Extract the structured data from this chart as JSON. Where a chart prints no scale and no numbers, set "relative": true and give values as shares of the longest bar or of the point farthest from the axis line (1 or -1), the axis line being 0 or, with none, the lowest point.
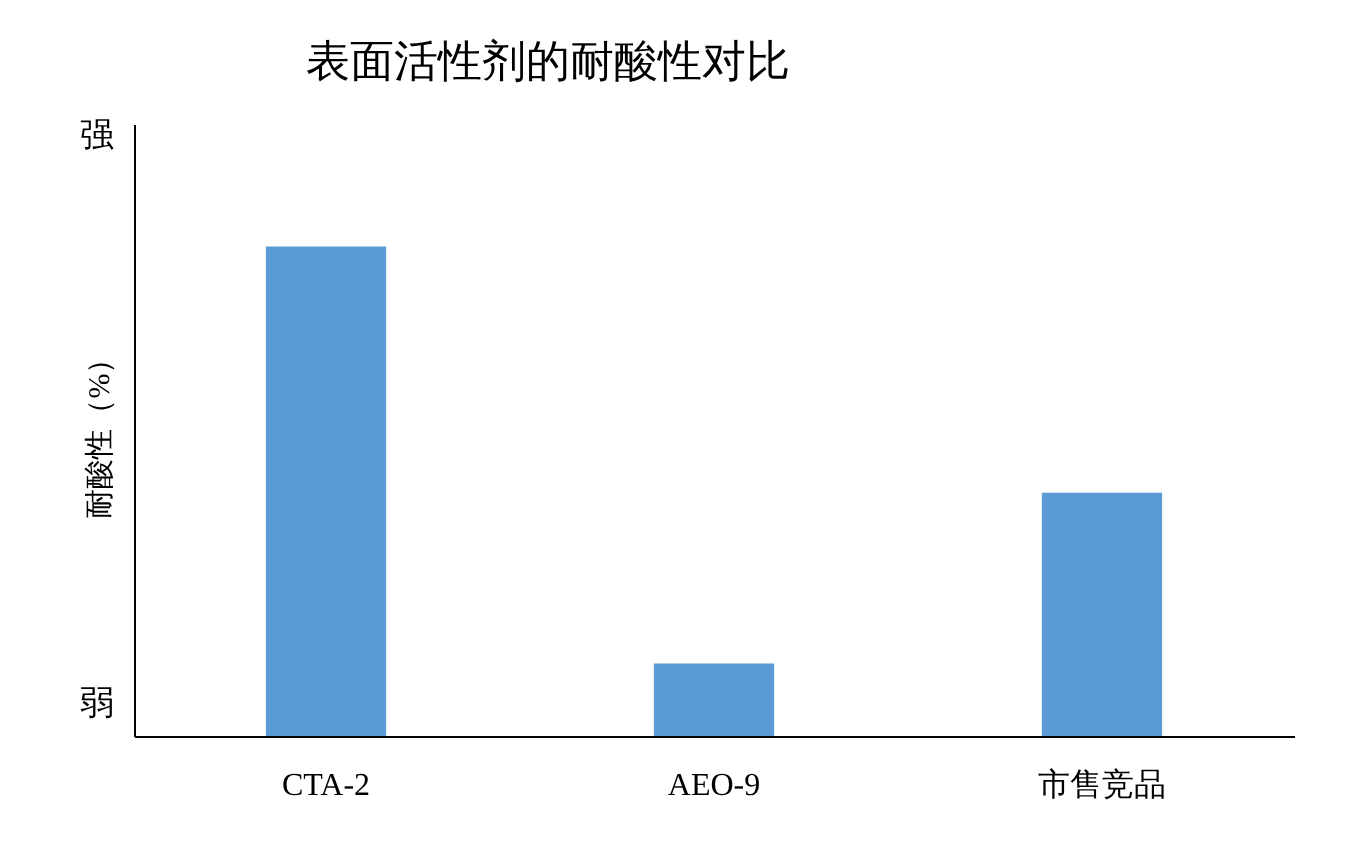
{
  "chart_data": {
    "type": "bar",
    "title": "表面活性剂的耐酸性对比",
    "ylabel": "耐酸性（%）",
    "categories": [
      "CTA-2",
      "AEO-9",
      "市售竞品"
    ],
    "values": [
      1,
      0.148,
      0.497
    ],
    "color": "#5b9bd5",
    "relative": true,
    "annotations": [
      "强",
      "弱"
    ]
  }
}
